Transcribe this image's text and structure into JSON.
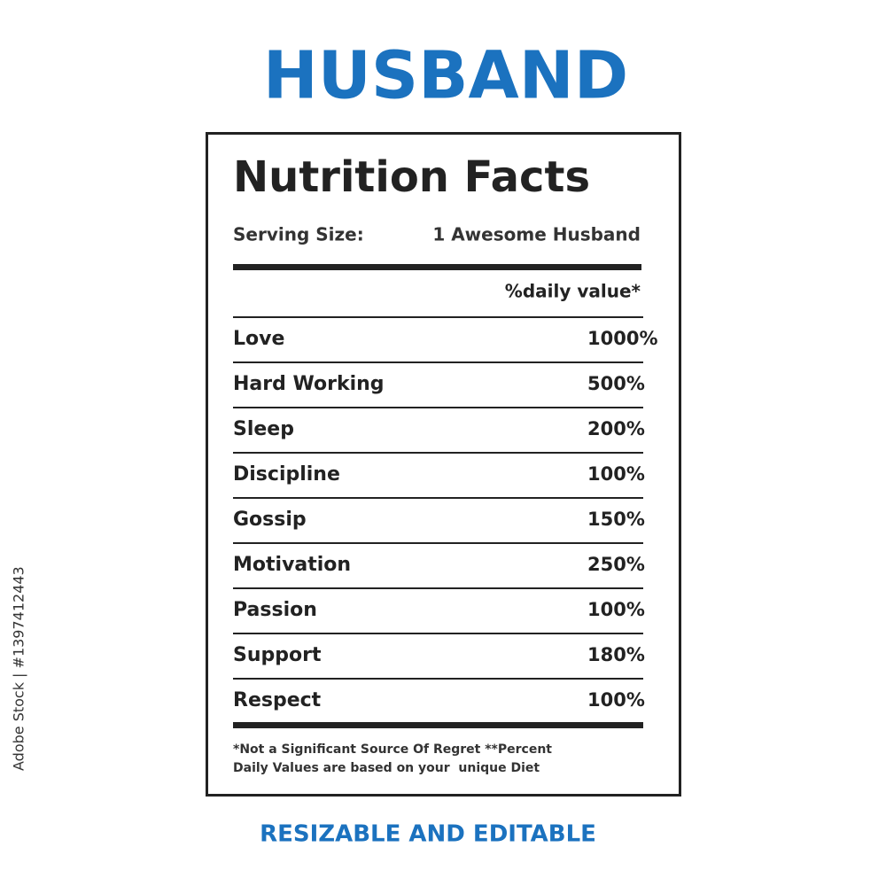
{
  "header": {
    "title": "HUSBAND"
  },
  "label": {
    "title": "Nutrition Facts",
    "serving_size_label": "Serving Size:",
    "serving_size_value": "1 Awesome Husband",
    "daily_value_header": "%daily value*",
    "rows": [
      {
        "name": "Love",
        "value": "1000%"
      },
      {
        "name": "Hard Working",
        "value": "500%"
      },
      {
        "name": "Sleep",
        "value": "200%"
      },
      {
        "name": "Discipline",
        "value": "100%"
      },
      {
        "name": "Gossip",
        "value": "150%"
      },
      {
        "name": "Motivation",
        "value": "250%"
      },
      {
        "name": "Passion",
        "value": "100%"
      },
      {
        "name": "Support",
        "value": "180%"
      },
      {
        "name": "Respect",
        "value": "100%"
      }
    ],
    "footnote": [
      "*Not a Significant Source Of Regret **Percent",
      "Daily Values are based on your  unique Diet"
    ]
  },
  "footer": {
    "text": "RESIZABLE AND EDITABLE"
  },
  "watermark": {
    "text": "Adobe Stock | #1397412443"
  }
}
